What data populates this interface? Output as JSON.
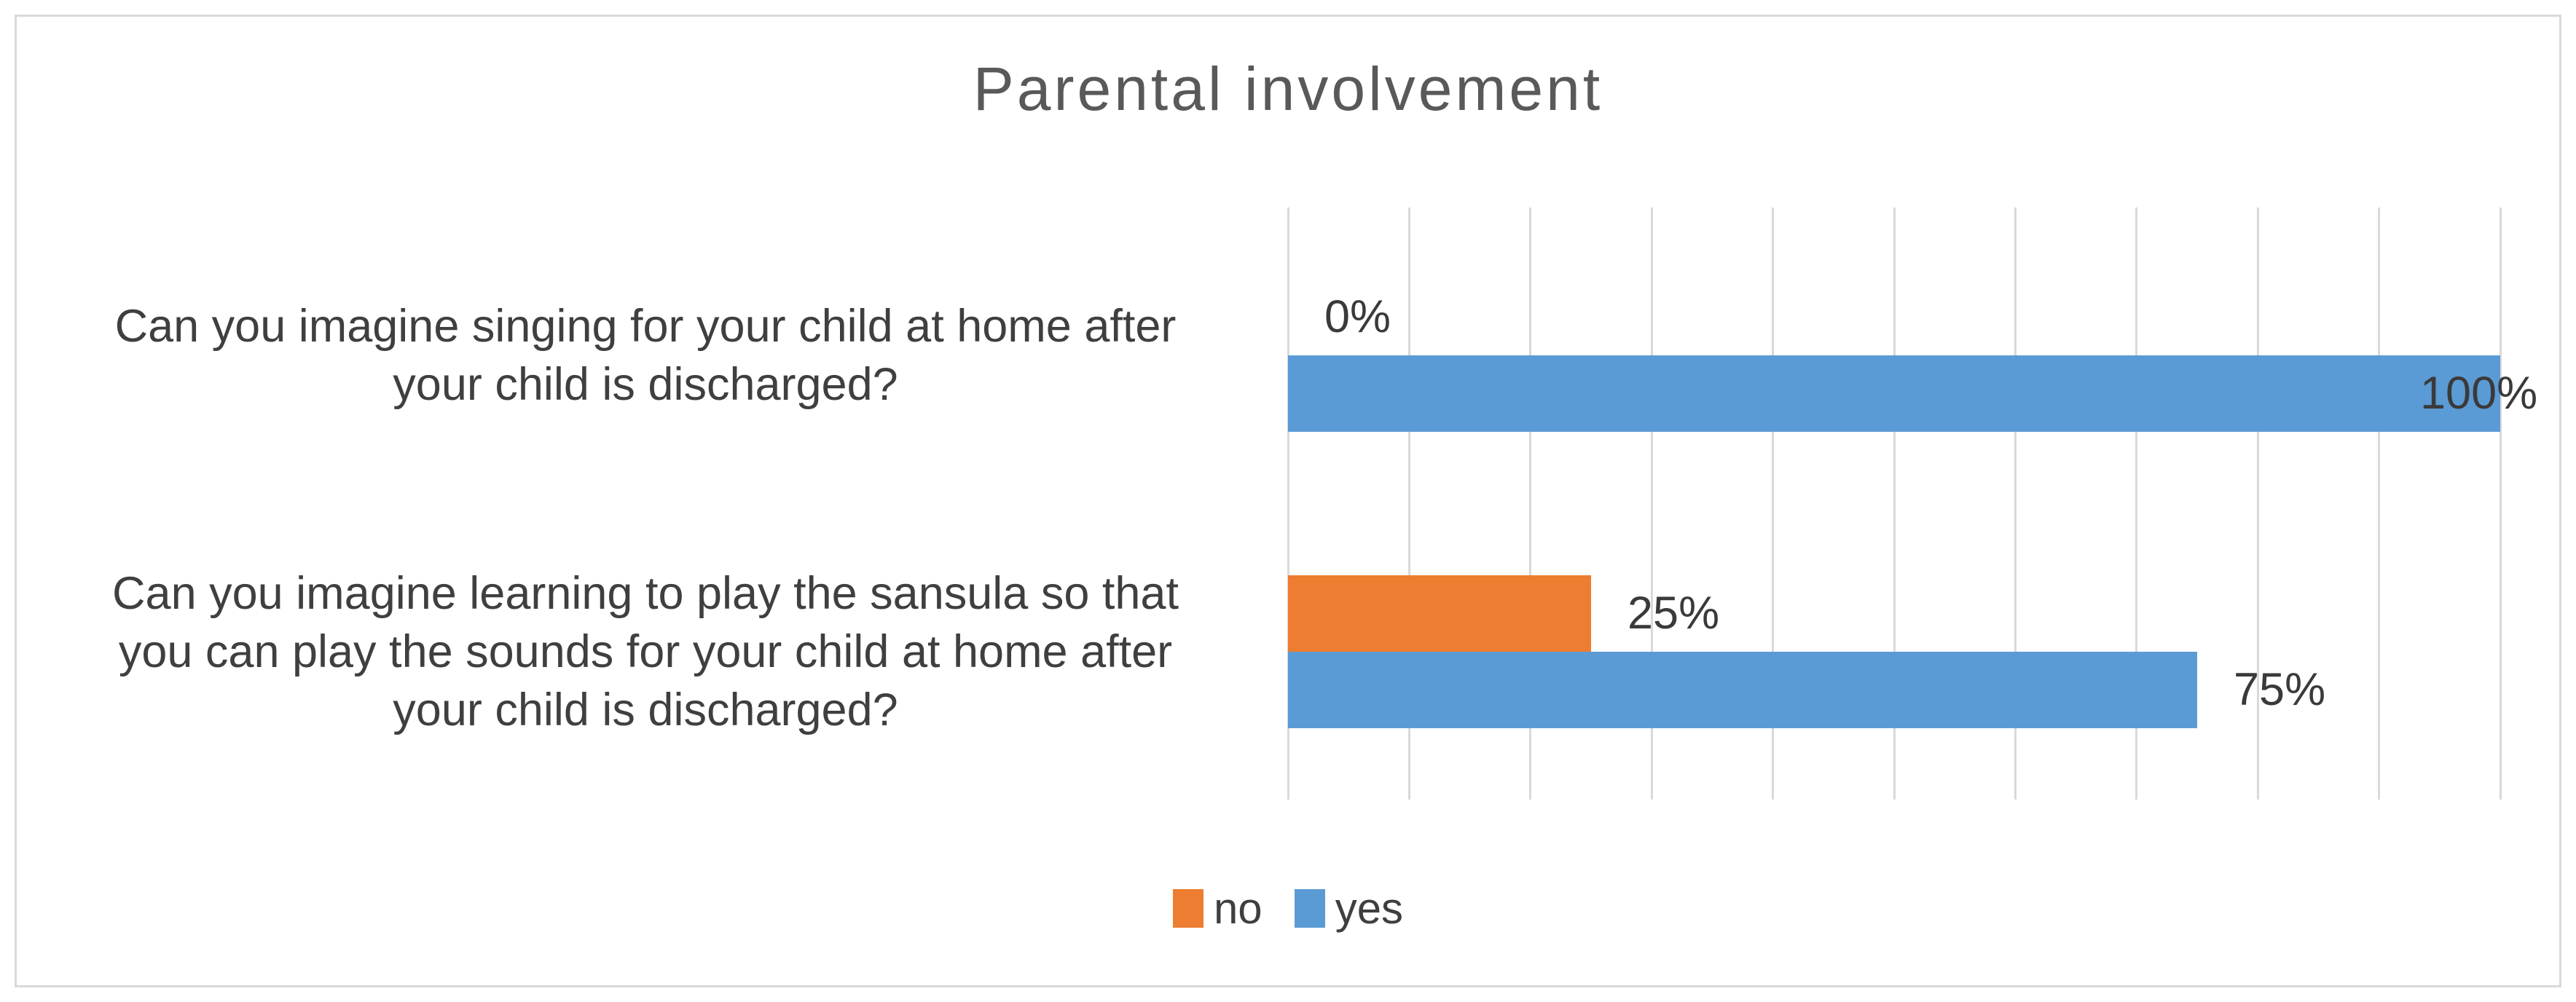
{
  "chart_data": {
    "type": "bar",
    "orientation": "horizontal",
    "title": "Parental involvement",
    "categories": [
      "Can you imagine singing for your child at home after\nyour child is discharged?",
      "Can you imagine learning to play the sansula so that\nyou can play the sounds for your child at home after\nyour child is discharged?"
    ],
    "series": [
      {
        "name": "no",
        "color": "#ED7D31",
        "values": [
          0,
          25
        ],
        "labels": [
          "0%",
          "25%"
        ]
      },
      {
        "name": "yes",
        "color": "#5B9BD5",
        "values": [
          100,
          75
        ],
        "labels": [
          "100%",
          "75%"
        ]
      }
    ],
    "xlabel": "",
    "ylabel": "",
    "xlim": [
      0,
      100
    ],
    "gridline_step": 10,
    "grid": "vertical",
    "legend_position": "bottom"
  },
  "styles": {
    "title_color": "#595959",
    "text_color": "#3F3F3F",
    "gridline_color": "#D9D9D9",
    "border_color": "#D9D9D9",
    "background": "#FFFFFF"
  }
}
